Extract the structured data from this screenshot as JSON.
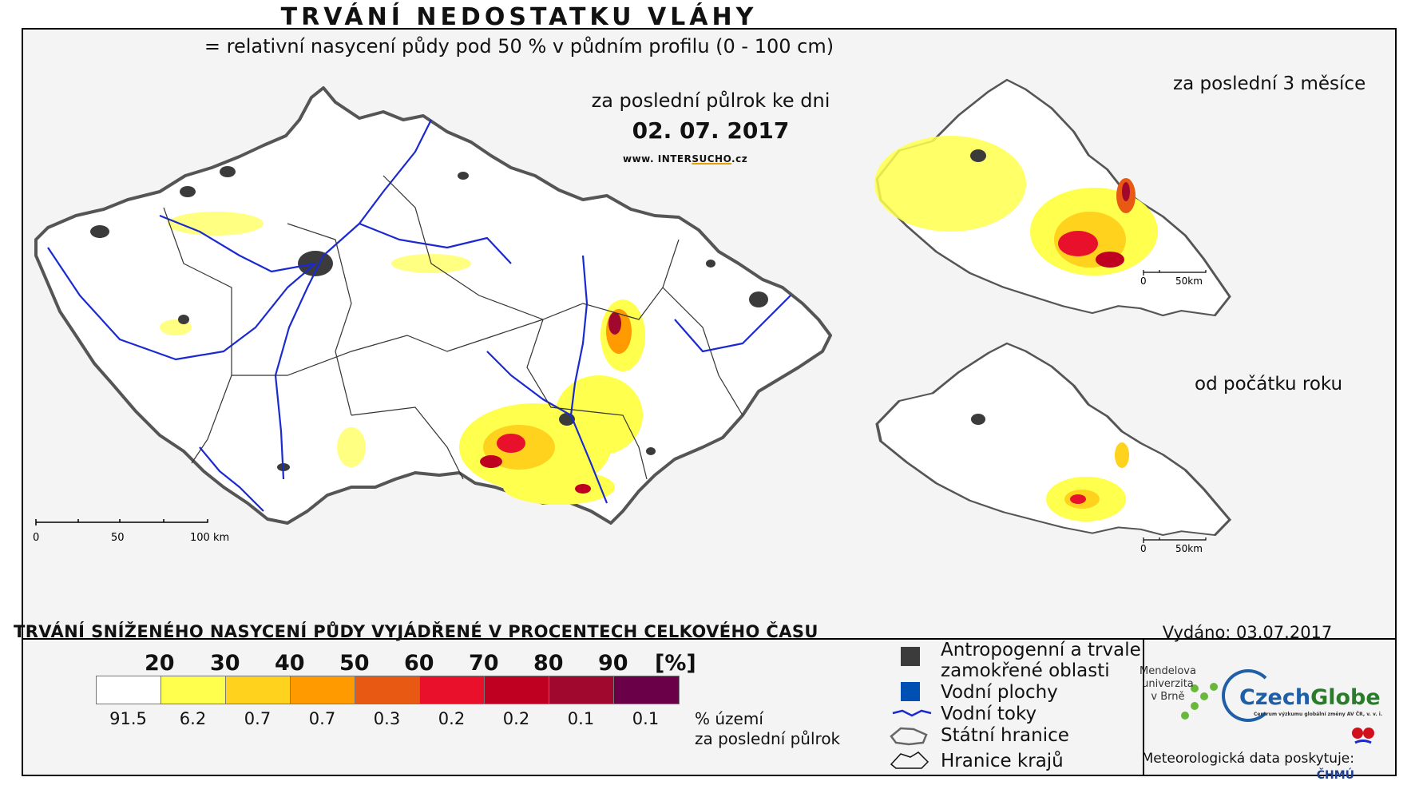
{
  "header": {
    "title": "TRVÁNÍ NEDOSTATKU VLÁHY",
    "subtitle": "= relativní nasycení půdy pod 50 % v půdním profilu (0 - 100 cm)",
    "period": "za poslední půlrok ke dni",
    "date": "02. 07. 2017",
    "website_prefix": "www. INTER",
    "website_highlight": "SUCHO",
    "website_suffix": ".cz"
  },
  "insets": [
    {
      "label": "za poslední 3 měsíce",
      "scale_zero": "0",
      "scale_end": "50km"
    },
    {
      "label": "od počátku roku",
      "scale_zero": "0",
      "scale_end": "50km"
    }
  ],
  "main_map": {
    "scale_zero": "0",
    "scale_mid": "50",
    "scale_end": "100 km"
  },
  "legend": {
    "title": "TRVÁNÍ SNÍŽENÉHO NASYCENÍ PŮDY VYJÁDŘENÉ V PROCENTECH CELKOVÉHO ČASU",
    "thresholds": [
      "20",
      "30",
      "40",
      "50",
      "60",
      "70",
      "80",
      "90"
    ],
    "unit": "[%]",
    "colors": [
      "#ffffff",
      "#ffff4d",
      "#ffd21e",
      "#ff9a00",
      "#e85a14",
      "#e8102a",
      "#c00020",
      "#a0082e",
      "#6a0048"
    ],
    "share_values": [
      "91.5",
      "6.2",
      "0.7",
      "0.7",
      "0.3",
      "0.2",
      "0.2",
      "0.1",
      "0.1"
    ],
    "share_note_line1": "% území",
    "share_note_line2": "za poslední půlrok"
  },
  "symbols": {
    "urban_line1": "Antropogenní a trvale",
    "urban_line2": "zamokřené oblasti",
    "urban_color": "#3b3b3b",
    "water_bodies": "Vodní plochy",
    "water_color": "#0050b4",
    "rivers": "Vodní toky",
    "river_color": "#1a2ad0",
    "state_border": "Státní hranice",
    "region_border": "Hranice krajů"
  },
  "footer": {
    "issued": "Vydáno: 03.07.2017",
    "mendel_line1": "Mendelova",
    "mendel_line2": "univerzita",
    "mendel_line3": "v Brně",
    "czechglobe_a": "Czech",
    "czechglobe_b": "Globe",
    "czechglobe_sub": "Centrum výzkumu globální změny AV ČR, v. v. i.",
    "meteo_prefix": "Meteorologická data poskytuje: ",
    "meteo_org": "ČHMÚ"
  }
}
